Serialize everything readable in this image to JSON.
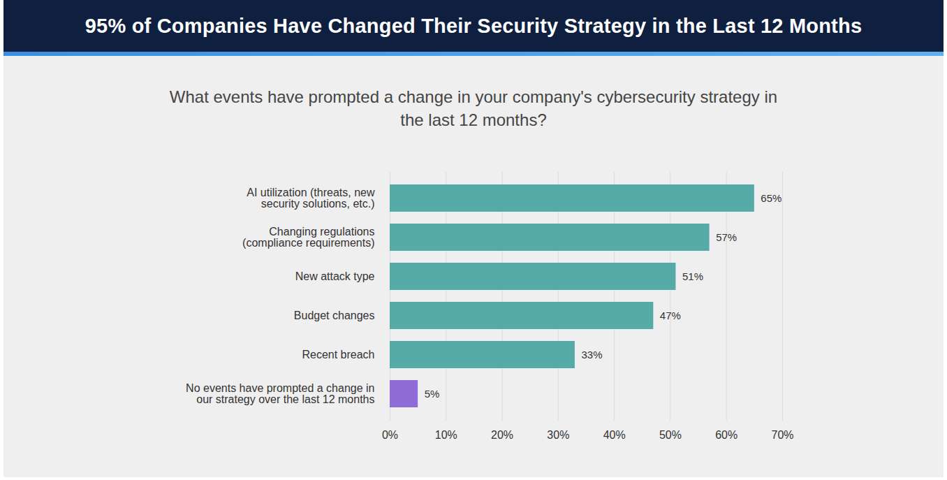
{
  "chart_data": {
    "type": "bar",
    "orientation": "horizontal",
    "title": "95% of Companies Have Changed Their Security Strategy in the Last 12 Months",
    "subtitle": "What events have prompted a change in your company's cybersecurity strategy in the last 12 months?",
    "categories": [
      "AI utilization (threats, new\nsecurity solutions, etc.)",
      "Changing regulations\n(compliance requirements)",
      "New attack type",
      "Budget changes",
      "Recent breach",
      "No events have prompted a change in\nour strategy over the last 12 months"
    ],
    "values": [
      65,
      57,
      51,
      47,
      33,
      5
    ],
    "value_labels": [
      "65%",
      "57%",
      "51%",
      "47%",
      "33%",
      "5%"
    ],
    "colors": [
      "#56aba9",
      "#56aba9",
      "#56aba9",
      "#56aba9",
      "#56aba9",
      "#8e6bd6"
    ],
    "xlim": [
      0,
      70
    ],
    "xticks": [
      {
        "value": 0,
        "label": "0%"
      },
      {
        "value": 10,
        "label": "10%"
      },
      {
        "value": 20,
        "label": "20%"
      },
      {
        "value": 30,
        "label": "30%"
      },
      {
        "value": 40,
        "label": "40%"
      },
      {
        "value": 50,
        "label": "50%"
      },
      {
        "value": 60,
        "label": "60%"
      },
      {
        "value": 70,
        "label": "70%"
      }
    ],
    "grid": true,
    "data_labels": true
  }
}
